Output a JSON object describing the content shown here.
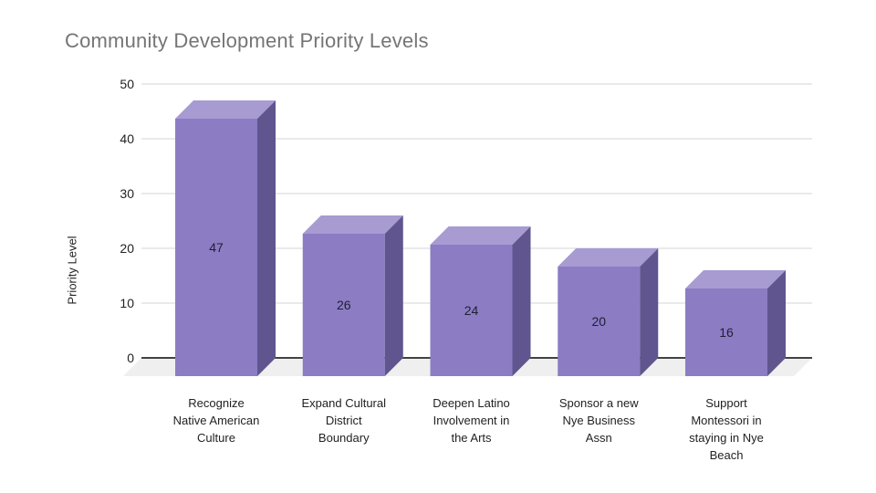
{
  "title": "Community Development Priority Levels",
  "chart_data": {
    "type": "bar",
    "projection": "3d",
    "title": "Community Development Priority Levels",
    "ylabel": "Priority Level",
    "xlabel": "",
    "categories": [
      "Recognize Native American Culture",
      "Expand Cultural District Boundary",
      "Deepen Latino Involvement in the Arts",
      "Sponsor a new Nye Business Assn",
      "Support Montessori in staying in Nye Beach"
    ],
    "category_lines": [
      [
        "Recognize",
        "Native American",
        "Culture"
      ],
      [
        "Expand Cultural",
        "District",
        "Boundary"
      ],
      [
        "Deepen Latino",
        "Involvement in",
        "the Arts"
      ],
      [
        "Sponsor a new",
        "Nye Business",
        "Assn"
      ],
      [
        "Support",
        "Montessori in",
        "staying in Nye",
        "Beach"
      ]
    ],
    "values": [
      47,
      26,
      24,
      20,
      16
    ],
    "data_labels": [
      "47",
      "26",
      "24",
      "20",
      "16"
    ],
    "yticks": [
      0,
      10,
      20,
      30,
      40,
      50
    ],
    "ylim": [
      0,
      50
    ],
    "grid": true,
    "legend": "none",
    "colors": {
      "bar_front": "#8c7cc4",
      "bar_top": "#a79bd2",
      "bar_side": "#61558f",
      "gridline": "#e4e4e4",
      "axis_line": "#424242",
      "floor": "#efefef",
      "title_text": "#757575",
      "tick_text": "#222222",
      "value_text": "#1f1f33"
    }
  }
}
